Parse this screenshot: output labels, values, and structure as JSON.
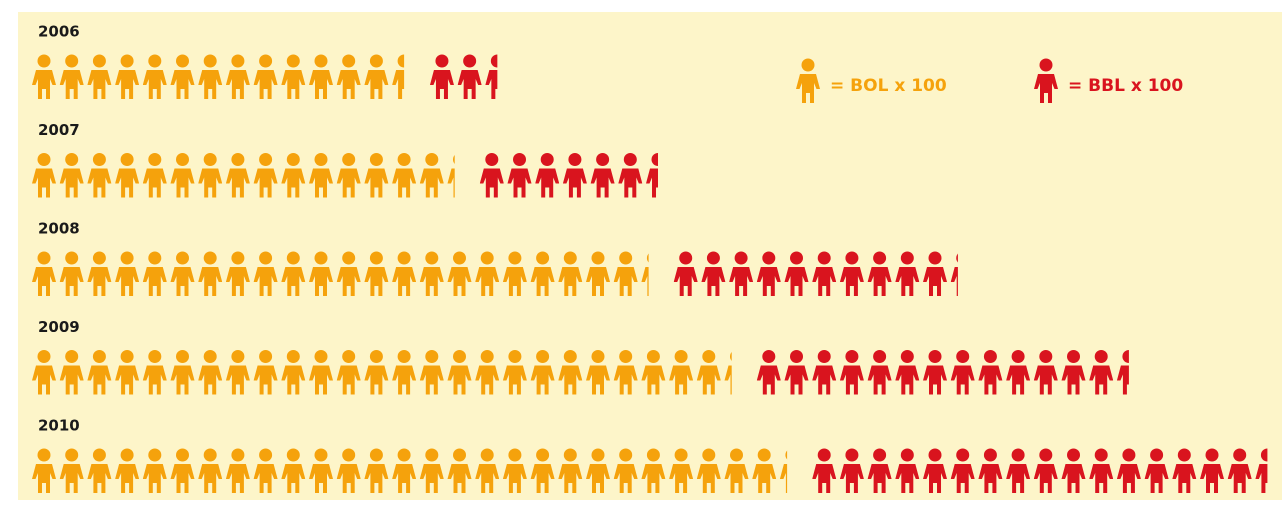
{
  "chart_data": {
    "type": "pictogram",
    "categories": [
      "2006",
      "2007",
      "2008",
      "2009",
      "2010"
    ],
    "series": [
      {
        "name": "= BOL x 100",
        "color": "#f5a20c",
        "values": [
          13.5,
          15.3,
          22.3,
          25.3,
          27.3
        ]
      },
      {
        "name": "= BBL x 100",
        "color": "#d9141e",
        "values": [
          2.5,
          6.5,
          10.3,
          13.5,
          16.5
        ]
      }
    ]
  }
}
